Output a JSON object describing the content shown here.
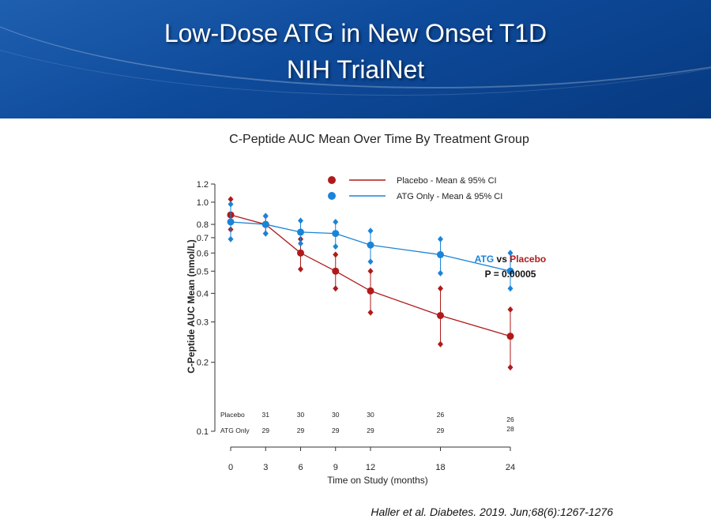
{
  "slide": {
    "title_line1": "Low-Dose ATG in New Onset T1D",
    "title_line2": "NIH TrialNet",
    "citation": "Haller et al. Diabetes. 2019. Jun;68(6):1267-1276"
  },
  "chart_data": {
    "type": "line",
    "title": "C-Peptide AUC Mean Over Time By Treatment Group",
    "xlabel": "Time on Study (months)",
    "ylabel": "C-Peptide AUC Mean (nmol/L)",
    "y_scale": "log",
    "ylim": [
      0.1,
      1.2
    ],
    "y_ticks": [
      0.1,
      0.2,
      0.3,
      0.4,
      0.5,
      0.6,
      0.7,
      0.8,
      1.0,
      1.2
    ],
    "y_tick_labels": [
      "0.1",
      "0.2",
      "0.3",
      "0.4",
      "0.5",
      "0.6",
      "0.7",
      "0.8",
      "1.0",
      "1.2"
    ],
    "x": [
      0,
      3,
      6,
      9,
      12,
      18,
      24
    ],
    "x_tick_labels": [
      "0",
      "3",
      "6",
      "9",
      "12",
      "18",
      "24"
    ],
    "legend_position": "top",
    "series": [
      {
        "name": "Placebo - Mean & 95% CI",
        "color": "#b01a1a",
        "values": [
          0.88,
          0.8,
          0.6,
          0.5,
          0.41,
          0.32,
          0.26
        ],
        "ci_low": [
          0.76,
          0.73,
          0.51,
          0.42,
          0.33,
          0.24,
          0.19
        ],
        "ci_high": [
          1.03,
          0.87,
          0.69,
          0.59,
          0.5,
          0.42,
          0.34
        ]
      },
      {
        "name": "ATG Only - Mean & 95% CI",
        "color": "#1a84d8",
        "values": [
          0.82,
          0.8,
          0.74,
          0.73,
          0.65,
          0.59,
          0.5
        ],
        "ci_low": [
          0.69,
          0.73,
          0.66,
          0.64,
          0.55,
          0.49,
          0.42
        ],
        "ci_high": [
          0.98,
          0.87,
          0.83,
          0.82,
          0.75,
          0.69,
          0.6
        ]
      }
    ],
    "annotation": {
      "atg": "ATG",
      "vs": " vs ",
      "placebo": "Placebo",
      "p_value": "P = 0.00005"
    },
    "n_at_risk": {
      "labels": [
        "Placebo",
        "ATG Only"
      ],
      "placebo": [
        "31",
        "30",
        "30",
        "30",
        "26",
        "26"
      ],
      "placebo_x": [
        3,
        6,
        9,
        12,
        18,
        24
      ],
      "atg": [
        "29",
        "29",
        "29",
        "29",
        "29",
        "28"
      ],
      "atg_x": [
        3,
        6,
        9,
        12,
        18,
        24
      ]
    }
  }
}
